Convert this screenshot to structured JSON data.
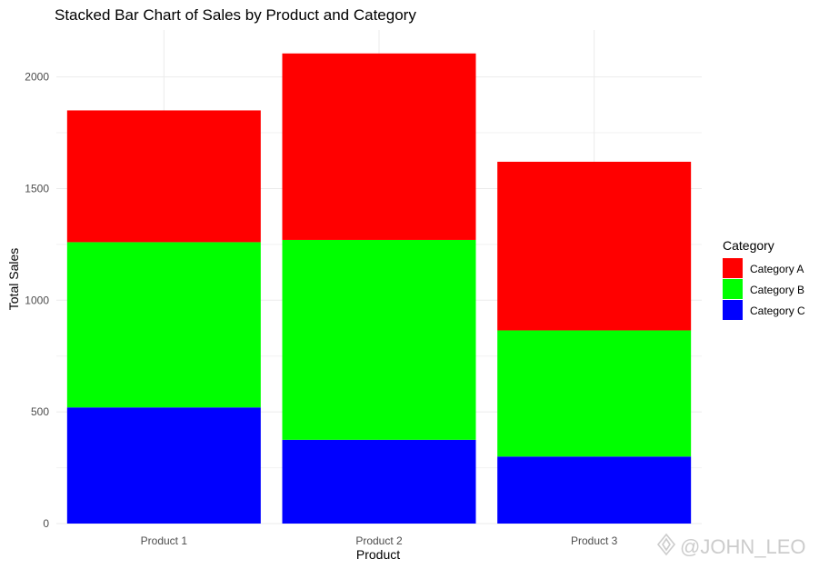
{
  "chart_data": {
    "type": "bar",
    "stacked": true,
    "title": "Stacked Bar Chart of Sales by Product and Category",
    "xlabel": "Product",
    "ylabel": "Total Sales",
    "categories": [
      "Product 1",
      "Product 2",
      "Product 3"
    ],
    "series": [
      {
        "name": "Category A",
        "color": "#ff0000",
        "values": [
          590,
          835,
          755
        ]
      },
      {
        "name": "Category B",
        "color": "#00ff00",
        "values": [
          740,
          895,
          565
        ]
      },
      {
        "name": "Category C",
        "color": "#0000ff",
        "values": [
          520,
          375,
          300
        ]
      }
    ],
    "ylim": [
      0,
      2210
    ],
    "yticks": [
      0,
      500,
      1000,
      1500,
      2000
    ],
    "grid": true,
    "legend": {
      "title": "Category",
      "position": "right"
    }
  },
  "watermark": "@JOHN_LEO"
}
